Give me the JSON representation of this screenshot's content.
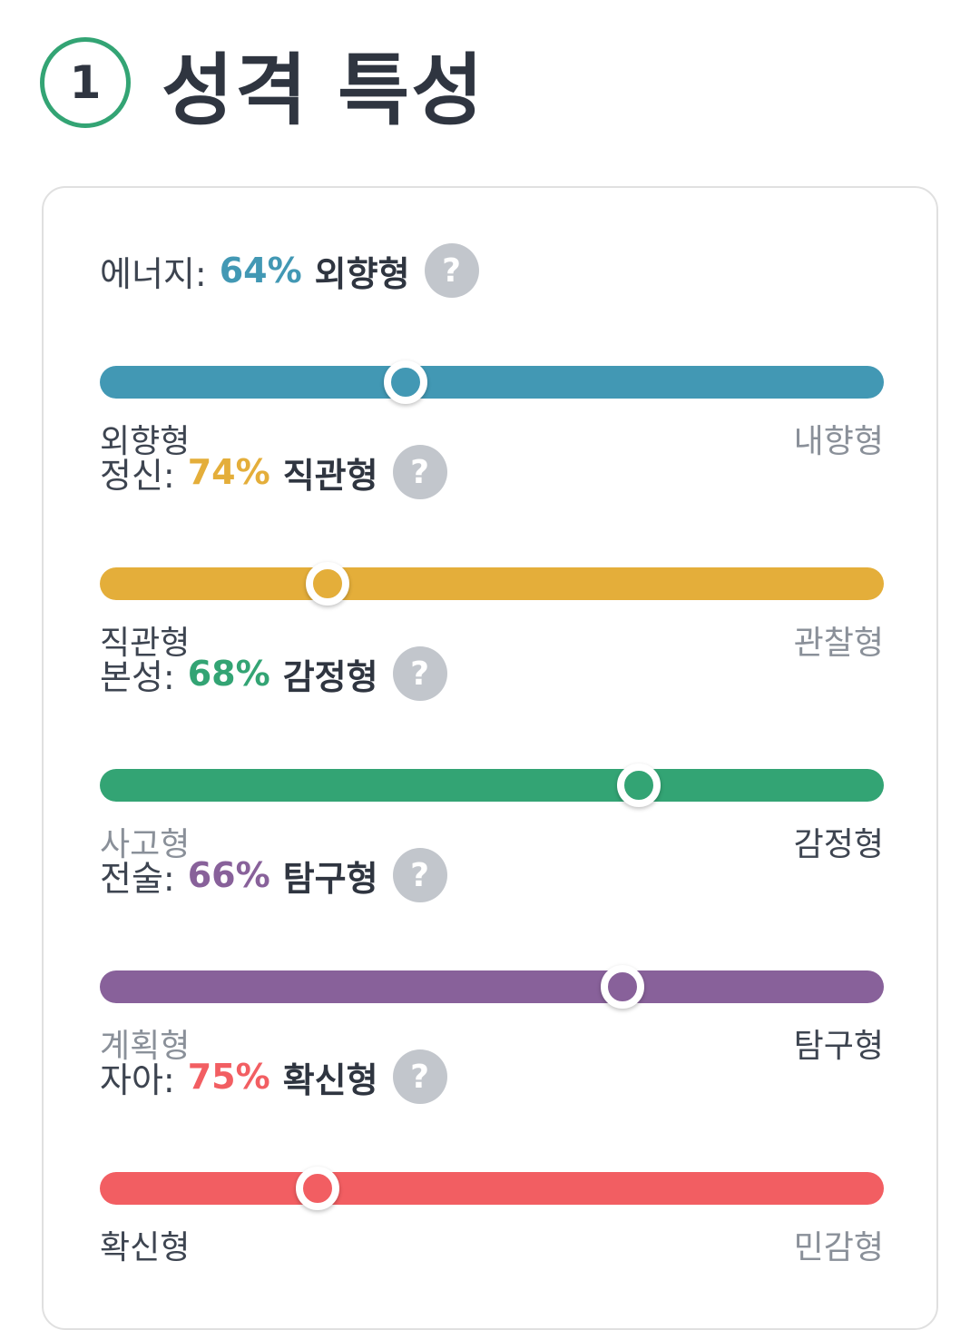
{
  "section": {
    "number": "1",
    "title": "성격 특성"
  },
  "help_glyph": "?",
  "traits": [
    {
      "name": "에너지:",
      "percent": "64%",
      "type": "외향형",
      "color": "#4298b4",
      "left": "외향형",
      "right": "내향형",
      "active": "left",
      "knob_position": 0.39
    },
    {
      "name": "정신:",
      "percent": "74%",
      "type": "직관형",
      "color": "#e4ae3a",
      "left": "직관형",
      "right": "관찰형",
      "active": "left",
      "knob_position": 0.29
    },
    {
      "name": "본성:",
      "percent": "68%",
      "type": "감정형",
      "color": "#33a474",
      "left": "사고형",
      "right": "감정형",
      "active": "right",
      "knob_position": 0.688
    },
    {
      "name": "전술:",
      "percent": "66%",
      "type": "탐구형",
      "color": "#88619a",
      "left": "계획형",
      "right": "탐구형",
      "active": "right",
      "knob_position": 0.667
    },
    {
      "name": "자아:",
      "percent": "75%",
      "type": "확신형",
      "color": "#f25e62",
      "left": "확신형",
      "right": "민감형",
      "active": "left",
      "knob_position": 0.278
    }
  ]
}
